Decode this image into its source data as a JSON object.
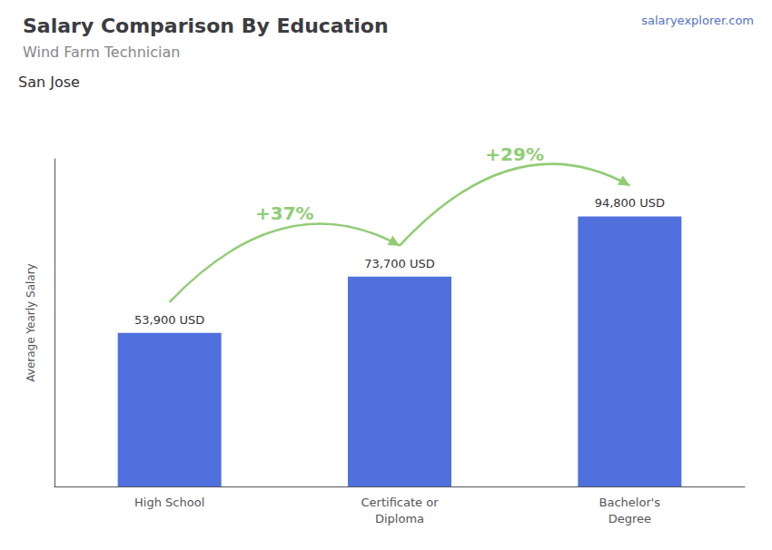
{
  "chart_data": {
    "type": "bar",
    "title": "Salary Comparison By Education",
    "subtitle": "Wind Farm Technician",
    "categories": [
      "High School",
      "Certificate or\nDiploma",
      "Bachelor's\nDegree"
    ],
    "values": [
      53900,
      73700,
      94800
    ],
    "value_labels": [
      "53,900 USD",
      "73,700 USD",
      "94,800 USD"
    ],
    "data_labels": true,
    "ylabel": "Average Yearly Salary",
    "ylim": [
      0,
      115000
    ],
    "tick_labels": "x",
    "grid": false,
    "annotations": [
      {
        "text": "San Jose"
      },
      {
        "text": "salaryexplorer.com"
      },
      {
        "text": "+37%",
        "from": "High School",
        "to": "Certificate or\nDiploma"
      },
      {
        "text": "+29%",
        "from": "Certificate or\nDiploma",
        "to": "Bachelor's\nDegree"
      }
    ]
  }
}
